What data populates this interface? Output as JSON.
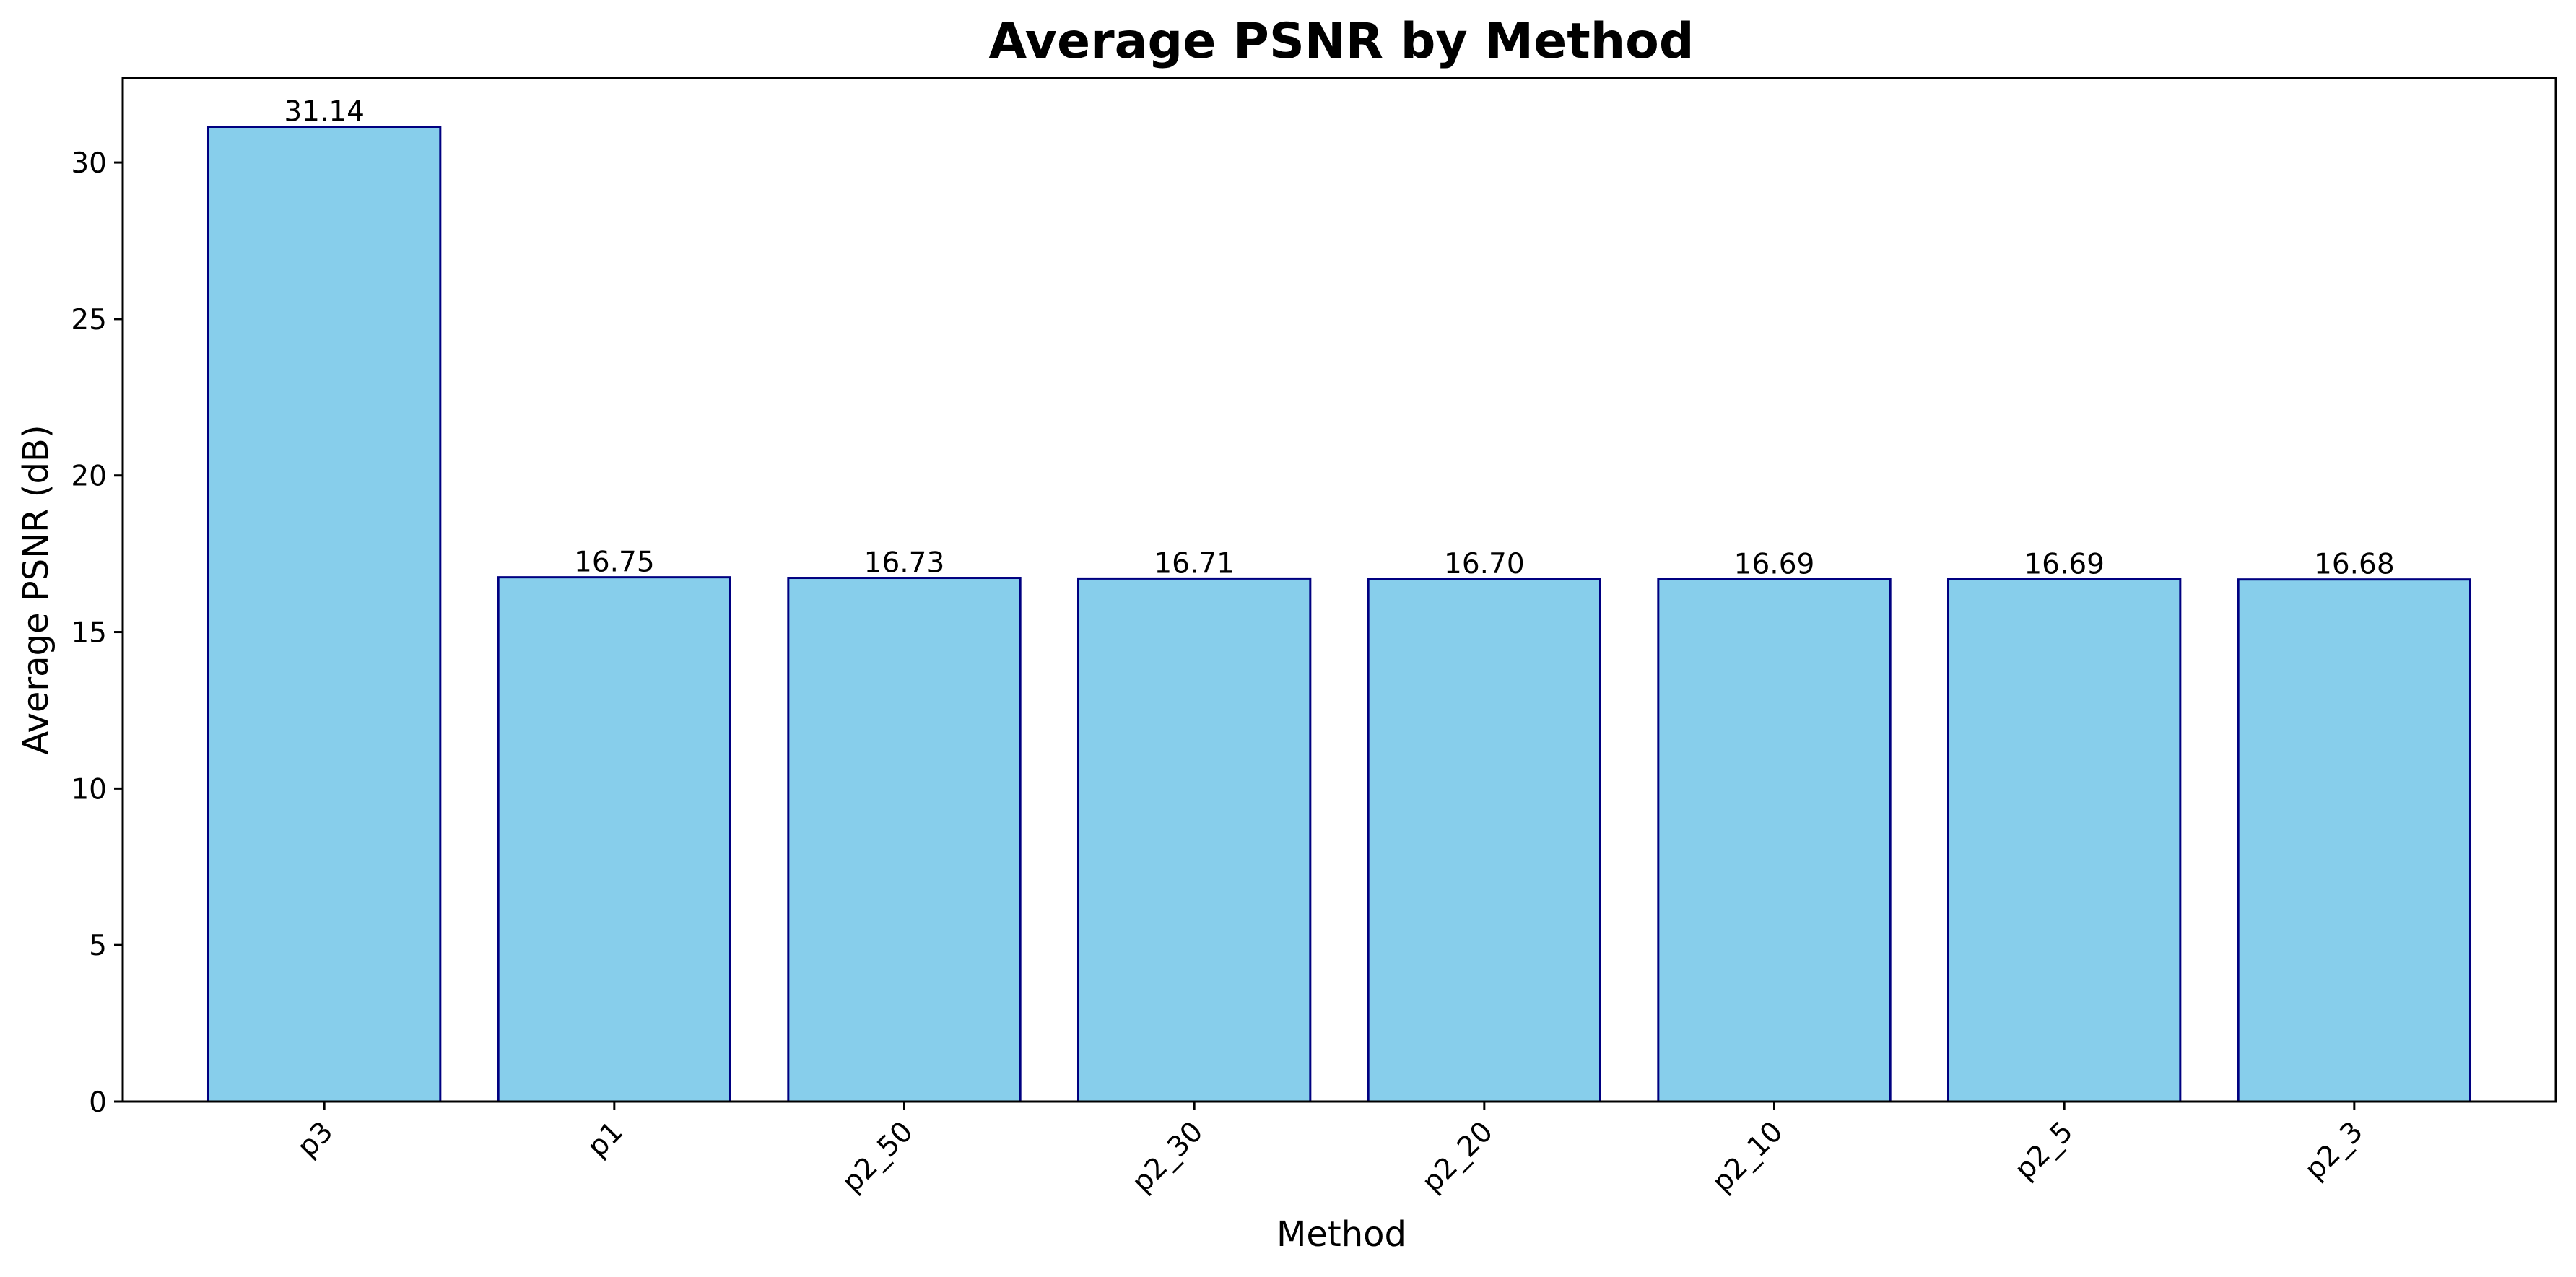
{
  "chart_data": {
    "type": "bar",
    "title": "Average PSNR by Method",
    "xlabel": "Method",
    "ylabel": "Average PSNR (dB)",
    "categories": [
      "p3",
      "p1",
      "p2_50",
      "p2_30",
      "p2_20",
      "p2_10",
      "p2_5",
      "p2_3"
    ],
    "values": [
      31.14,
      16.75,
      16.73,
      16.71,
      16.7,
      16.69,
      16.69,
      16.68
    ],
    "value_labels": [
      "31.14",
      "16.75",
      "16.73",
      "16.71",
      "16.70",
      "16.69",
      "16.69",
      "16.68"
    ],
    "ylim": [
      0,
      32.7
    ],
    "yticks": [
      0,
      5,
      10,
      15,
      20,
      25,
      30
    ],
    "grid": false,
    "legend": "none",
    "colors": {
      "bar_fill": "#87CEEB",
      "bar_edge": "#000080"
    }
  }
}
